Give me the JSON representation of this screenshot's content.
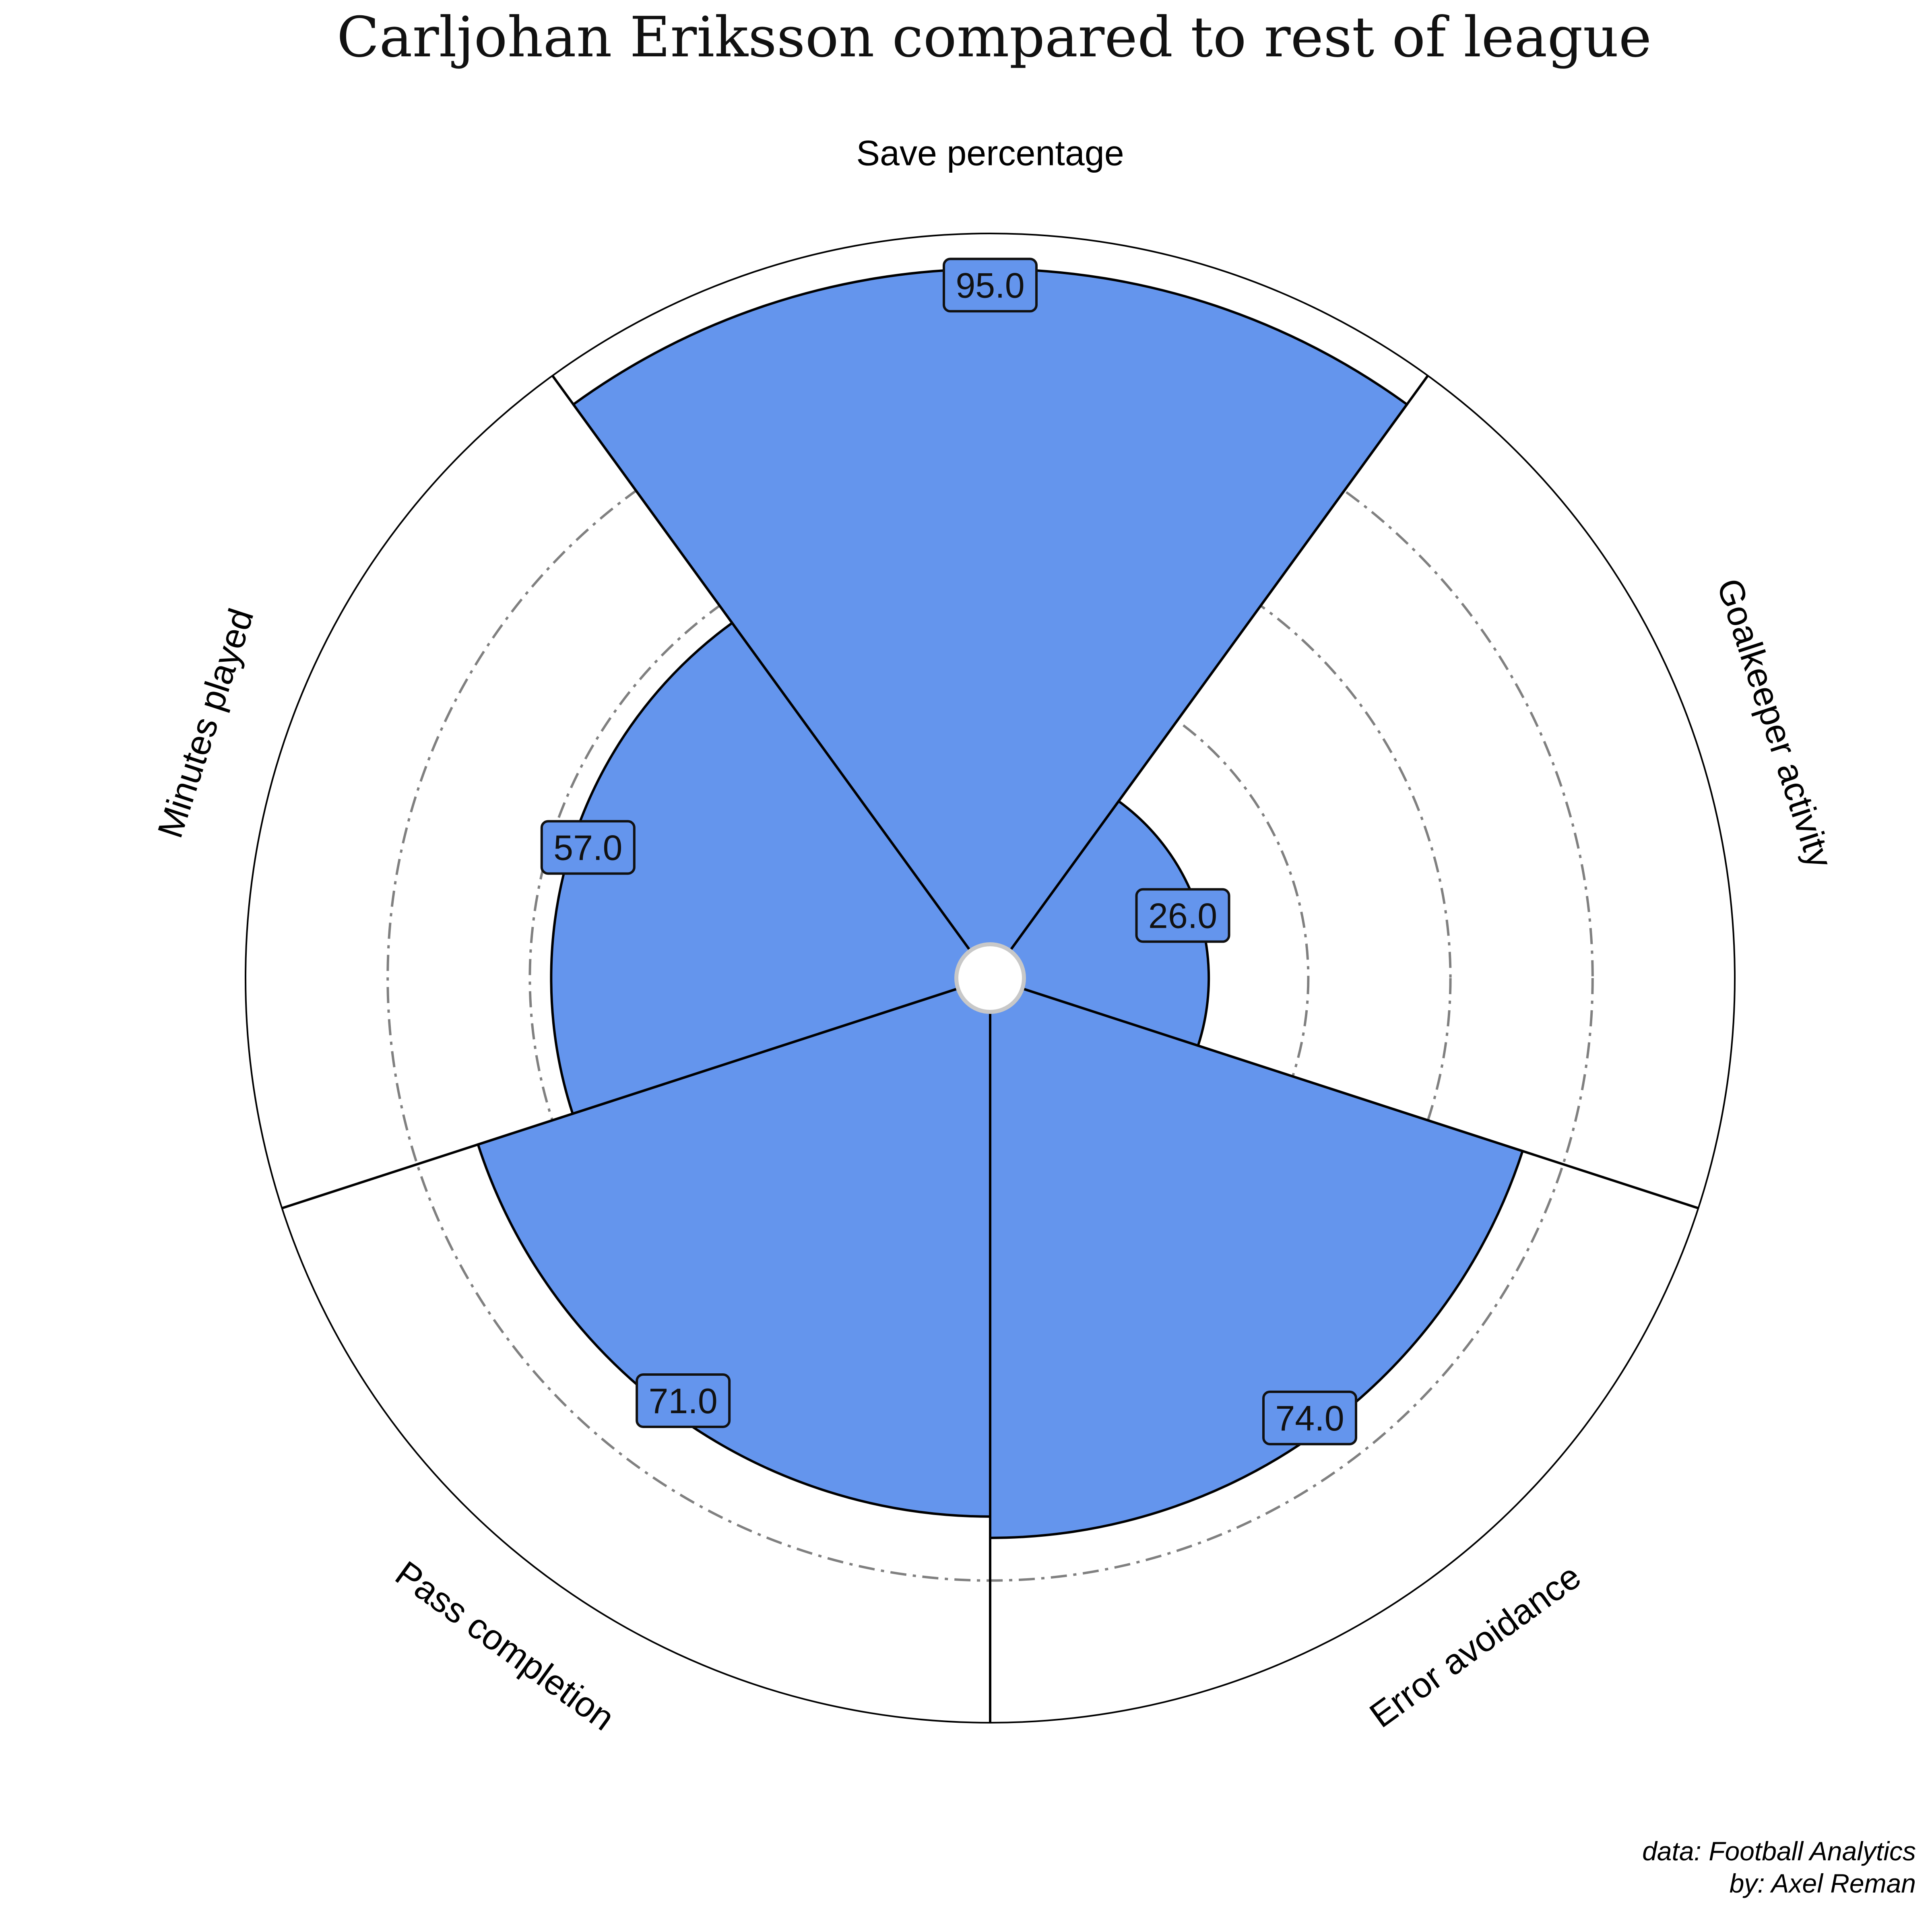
{
  "chart_data": {
    "type": "pizza",
    "title": "Carljohan Eriksson compared to rest of league",
    "categories": [
      "Save percentage",
      "Goalkeeper activity",
      "Error avoidance",
      "Pass completion",
      "Minutes played"
    ],
    "values": [
      95.0,
      26.0,
      74.0,
      71.0,
      57.0
    ],
    "value_labels": [
      "95.0",
      "26.0",
      "74.0",
      "71.0",
      "57.0"
    ],
    "range": [
      0,
      100
    ],
    "gridlines": [
      20,
      40,
      60,
      80
    ],
    "grid_style": "dash-dot",
    "slice_color": "#6495ED",
    "grid_color": "#808080",
    "edge_color": "#000000"
  },
  "credits": {
    "data_source": "data: Football Analytics",
    "author": "by: Axel Reman"
  }
}
